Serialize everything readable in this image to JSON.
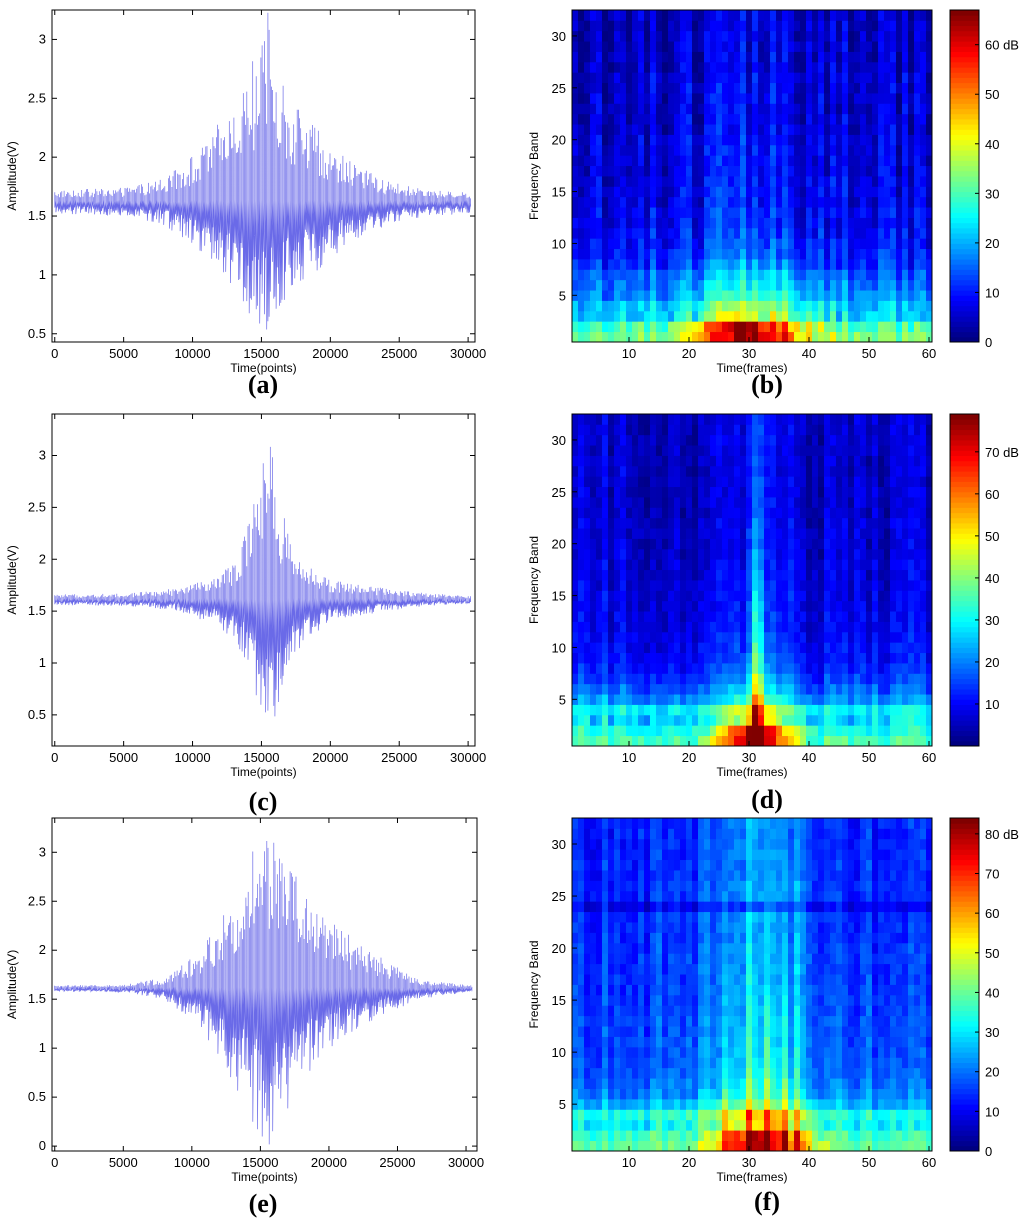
{
  "colors": {
    "signal": "#6a6ae8",
    "frame": "#000000"
  },
  "chart_data": [
    {
      "id": "a",
      "type": "line",
      "panel_label": "(a)",
      "xlabel": "Time(points)",
      "ylabel": "Amplitude(V)",
      "xlim": [
        -200,
        30500
      ],
      "ylim": [
        0.43,
        3.25
      ],
      "xticks": [
        0,
        5000,
        10000,
        15000,
        20000,
        25000,
        30000
      ],
      "xtick_labels": [
        "0",
        "5000",
        "10000",
        "15000",
        "20000",
        "25000",
        "30000"
      ],
      "yticks": [
        0.5,
        1,
        1.5,
        2,
        2.5,
        3
      ],
      "ytick_labels": [
        "0.5",
        "1",
        "1.5",
        "2",
        "2.5",
        "3"
      ],
      "baseline": 1.62,
      "peak_x": 15200,
      "envelope": {
        "x": [
          0,
          5000,
          8000,
          11000,
          13000,
          14500,
          15500,
          16500,
          18500,
          21000,
          24000,
          27000,
          30000
        ],
        "upper": [
          1.72,
          1.74,
          1.82,
          2.12,
          2.5,
          2.85,
          3.25,
          2.65,
          2.3,
          2.0,
          1.8,
          1.72,
          1.7
        ],
        "lower": [
          1.52,
          1.5,
          1.42,
          1.15,
          0.85,
          0.6,
          0.45,
          0.75,
          0.98,
          1.2,
          1.42,
          1.5,
          1.52
        ]
      }
    },
    {
      "id": "b",
      "type": "heatmap",
      "panel_label": "(b)",
      "xlabel": "Time(frames)",
      "ylabel": "Frequency Band",
      "xlim": [
        0.5,
        60.5
      ],
      "ylim": [
        0.5,
        32.5
      ],
      "xticks": [
        10,
        20,
        30,
        40,
        50,
        60
      ],
      "yticks": [
        5,
        10,
        15,
        20,
        25,
        30
      ],
      "colorbar": {
        "min": 0,
        "max": 67,
        "ticks": [
          0,
          10,
          20,
          30,
          40,
          50,
          60
        ],
        "tick_labels": [
          "0",
          "10",
          "20",
          "30",
          "40",
          "50",
          "60 dB"
        ]
      },
      "frames": 60,
      "bands": 32,
      "hot_center_frame": 30,
      "hot_spread": 9,
      "peak_db": 66,
      "low_band_db": [
        58,
        52,
        40,
        30,
        25,
        22,
        20,
        16,
        14,
        12,
        11,
        10,
        10,
        9,
        9,
        9,
        8,
        8,
        8,
        8,
        7,
        7,
        7,
        7,
        7,
        7,
        6,
        6,
        6,
        6,
        6,
        6
      ],
      "noise_db": 6,
      "column_ridges": []
    },
    {
      "id": "c",
      "type": "line",
      "panel_label": "(c)",
      "xlabel": "Time(points)",
      "ylabel": "Amplitude(V)",
      "xlim": [
        -200,
        30500
      ],
      "ylim": [
        0.2,
        3.4
      ],
      "xticks": [
        0,
        5000,
        10000,
        15000,
        20000,
        25000,
        30000
      ],
      "xtick_labels": [
        "0",
        "5000",
        "10000",
        "15000",
        "20000",
        "25000",
        "30000"
      ],
      "yticks": [
        0.5,
        1,
        1.5,
        2,
        2.5,
        3
      ],
      "ytick_labels": [
        "0.5",
        "1",
        "1.5",
        "2",
        "2.5",
        "3"
      ],
      "baseline": 1.61,
      "peak_x": 15600,
      "envelope": {
        "x": [
          0,
          5000,
          9000,
          12000,
          13500,
          14800,
          15600,
          16300,
          17500,
          20000,
          24000,
          27000,
          30000
        ],
        "upper": [
          1.66,
          1.67,
          1.72,
          1.85,
          2.1,
          2.7,
          3.4,
          2.6,
          2.0,
          1.8,
          1.72,
          1.67,
          1.65
        ],
        "lower": [
          1.56,
          1.55,
          1.5,
          1.35,
          1.1,
          0.6,
          0.3,
          0.6,
          1.1,
          1.4,
          1.5,
          1.55,
          1.57
        ]
      }
    },
    {
      "id": "d",
      "type": "heatmap",
      "panel_label": "(d)",
      "xlabel": "Time(frames)",
      "ylabel": "Frequency Band",
      "xlim": [
        0.5,
        60.5
      ],
      "ylim": [
        0.5,
        32.5
      ],
      "xticks": [
        10,
        20,
        30,
        40,
        50,
        60
      ],
      "yticks": [
        5,
        10,
        15,
        20,
        25,
        30
      ],
      "colorbar": {
        "min": 0,
        "max": 79,
        "ticks": [
          10,
          20,
          30,
          40,
          50,
          60,
          70
        ],
        "tick_labels": [
          "10",
          "20",
          "30",
          "40",
          "50",
          "60",
          "70 dB"
        ]
      },
      "frames": 60,
      "bands": 32,
      "hot_center_frame": 31,
      "hot_spread": 6,
      "peak_db": 78,
      "low_band_db": [
        62,
        55,
        48,
        42,
        30,
        24,
        20,
        17,
        15,
        14,
        13,
        12,
        12,
        11,
        11,
        10,
        10,
        10,
        9,
        9,
        9,
        9,
        8,
        8,
        8,
        8,
        8,
        8,
        8,
        8,
        8,
        8
      ],
      "noise_db": 8,
      "column_ridges": [
        [
          31,
          30
        ],
        [
          32,
          18
        ]
      ]
    },
    {
      "id": "e",
      "type": "line",
      "panel_label": "(e)",
      "xlabel": "Time(points)",
      "ylabel": "Amplitude(V)",
      "xlim": [
        -200,
        30800
      ],
      "ylim": [
        -0.05,
        3.35
      ],
      "xticks": [
        0,
        5000,
        10000,
        15000,
        20000,
        25000,
        30000
      ],
      "xtick_labels": [
        "0",
        "5000",
        "10000",
        "15000",
        "20000",
        "25000",
        "30000"
      ],
      "yticks": [
        0,
        0.5,
        1,
        1.5,
        2,
        2.5,
        3
      ],
      "ytick_labels": [
        "0",
        "0.5",
        "1",
        "1.5",
        "2",
        "2.5",
        "3"
      ],
      "baseline": 1.61,
      "peak_x": 15400,
      "envelope": {
        "x": [
          0,
          5000,
          8000,
          10500,
          12500,
          14000,
          15400,
          16800,
          19000,
          21000,
          23500,
          26500,
          30500
        ],
        "upper": [
          1.64,
          1.65,
          1.72,
          2.0,
          2.4,
          2.9,
          3.35,
          2.9,
          2.5,
          2.2,
          1.95,
          1.7,
          1.64
        ],
        "lower": [
          1.58,
          1.57,
          1.5,
          1.2,
          0.8,
          0.35,
          -0.05,
          0.3,
          0.8,
          1.1,
          1.3,
          1.5,
          1.58
        ]
      }
    },
    {
      "id": "f",
      "type": "heatmap",
      "panel_label": "(f)",
      "xlabel": "Time(frames)",
      "ylabel": "Frequency Band",
      "xlim": [
        0.5,
        60.5
      ],
      "ylim": [
        0.5,
        32.5
      ],
      "xticks": [
        10,
        20,
        30,
        40,
        50,
        60
      ],
      "yticks": [
        5,
        10,
        15,
        20,
        25,
        30
      ],
      "colorbar": {
        "min": 0,
        "max": 84,
        "ticks": [
          0,
          10,
          20,
          30,
          40,
          50,
          60,
          70,
          80
        ],
        "tick_labels": [
          "0",
          "10",
          "20",
          "30",
          "40",
          "50",
          "60",
          "70",
          "80 dB"
        ]
      },
      "frames": 60,
      "bands": 32,
      "hot_center_frame": 32,
      "hot_spread": 8,
      "peak_db": 80,
      "low_band_db": [
        70,
        64,
        56,
        48,
        36,
        30,
        28,
        26,
        25,
        24,
        24,
        23,
        23,
        22,
        22,
        22,
        21,
        21,
        21,
        21,
        20,
        20,
        20,
        14,
        20,
        20,
        19,
        19,
        19,
        19,
        19,
        19
      ],
      "noise_db": 12,
      "column_ridges": [
        [
          26,
          14
        ],
        [
          30,
          18
        ],
        [
          33,
          22
        ],
        [
          36,
          16
        ],
        [
          38,
          12
        ]
      ]
    }
  ]
}
